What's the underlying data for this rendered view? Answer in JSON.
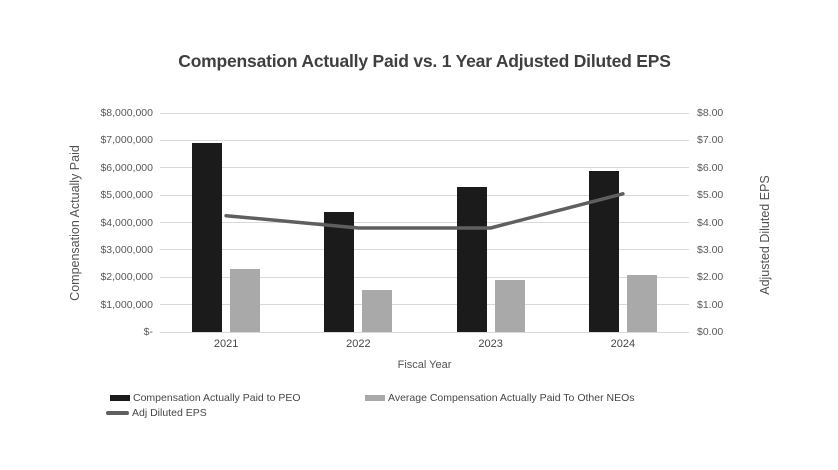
{
  "chart_data": {
    "type": "combo-bar-line",
    "title": "Compensation Actually Paid vs. 1 Year Adjusted Diluted EPS",
    "categories": [
      "2021",
      "2022",
      "2023",
      "2024"
    ],
    "bar_series": [
      {
        "name": "Compensation Actually Paid to PEO",
        "axis": "left",
        "color": "#1b1b1b",
        "values": [
          6900000,
          4400000,
          5300000,
          5900000
        ]
      },
      {
        "name": "Average Compensation Actually Paid To Other NEOs",
        "axis": "left",
        "color": "#a9a9a9",
        "values": [
          2300000,
          1550000,
          1900000,
          2100000
        ]
      }
    ],
    "line_series": [
      {
        "name": "Adj Diluted EPS",
        "axis": "right",
        "color": "#5f5f5f",
        "values": [
          4.25,
          3.8,
          3.8,
          5.05
        ]
      }
    ],
    "x_axis": {
      "title": "Fiscal Year"
    },
    "left_axis": {
      "title": "Compensation Actually Paid",
      "min": 0,
      "max": 8000000,
      "tick_labels": [
        "$8,000,000",
        "$7,000,000",
        "$6,000,000",
        "$5,000,000",
        "$4,000,000",
        "$3,000,000",
        "$2,000,000",
        "$1,000,000",
        "$-"
      ]
    },
    "right_axis": {
      "title": "Adjusted Diluted EPS",
      "min": 0,
      "max": 8,
      "tick_labels": [
        "$8.00",
        "$7.00",
        "$6.00",
        "$5.00",
        "$4.00",
        "$3.00",
        "$2.00",
        "$1.00",
        "$0.00"
      ]
    },
    "gridlines": true,
    "legend_position": "bottom"
  },
  "colors": {
    "grid": "#d9d9d9",
    "title_text": "#3f3f3f",
    "axis_text": "#595959",
    "label_text": "#474747",
    "background": "#ffffff"
  }
}
